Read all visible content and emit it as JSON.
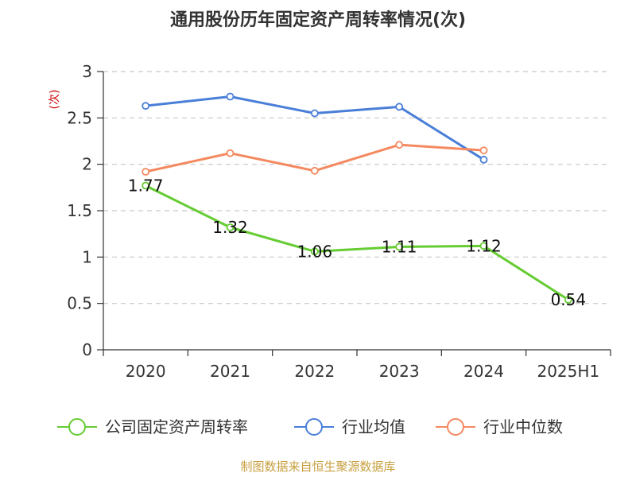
{
  "chart_data": {
    "type": "line",
    "title": "通用股份历年固定资产周转率情况(次)",
    "ylabel": "(次)",
    "ylabel_color": "#cc0000",
    "categories": [
      "2020",
      "2021",
      "2022",
      "2023",
      "2024",
      "2025H1"
    ],
    "ylim": [
      0,
      3
    ],
    "yticks": [
      "0",
      "0.5",
      "1",
      "1.5",
      "2",
      "2.5",
      "3"
    ],
    "grid": true,
    "legend_position": "bottom",
    "series": [
      {
        "name": "公司固定资产周转率",
        "color": "#66cc33",
        "values": [
          1.77,
          1.32,
          1.06,
          1.11,
          1.12,
          0.54
        ],
        "labels": [
          "1.77",
          "1.32",
          "1.06",
          "1.11",
          "1.12",
          "0.54"
        ]
      },
      {
        "name": "行业均值",
        "color": "#4a7fd8",
        "values": [
          2.63,
          2.73,
          2.55,
          2.62,
          2.05,
          null
        ]
      },
      {
        "name": "行业中位数",
        "color": "#f4895f",
        "values": [
          1.92,
          2.12,
          1.93,
          2.21,
          2.15,
          null
        ]
      }
    ]
  },
  "footer": {
    "source": "制图数据来自恒生聚源数据库",
    "color": "#c8a040"
  }
}
